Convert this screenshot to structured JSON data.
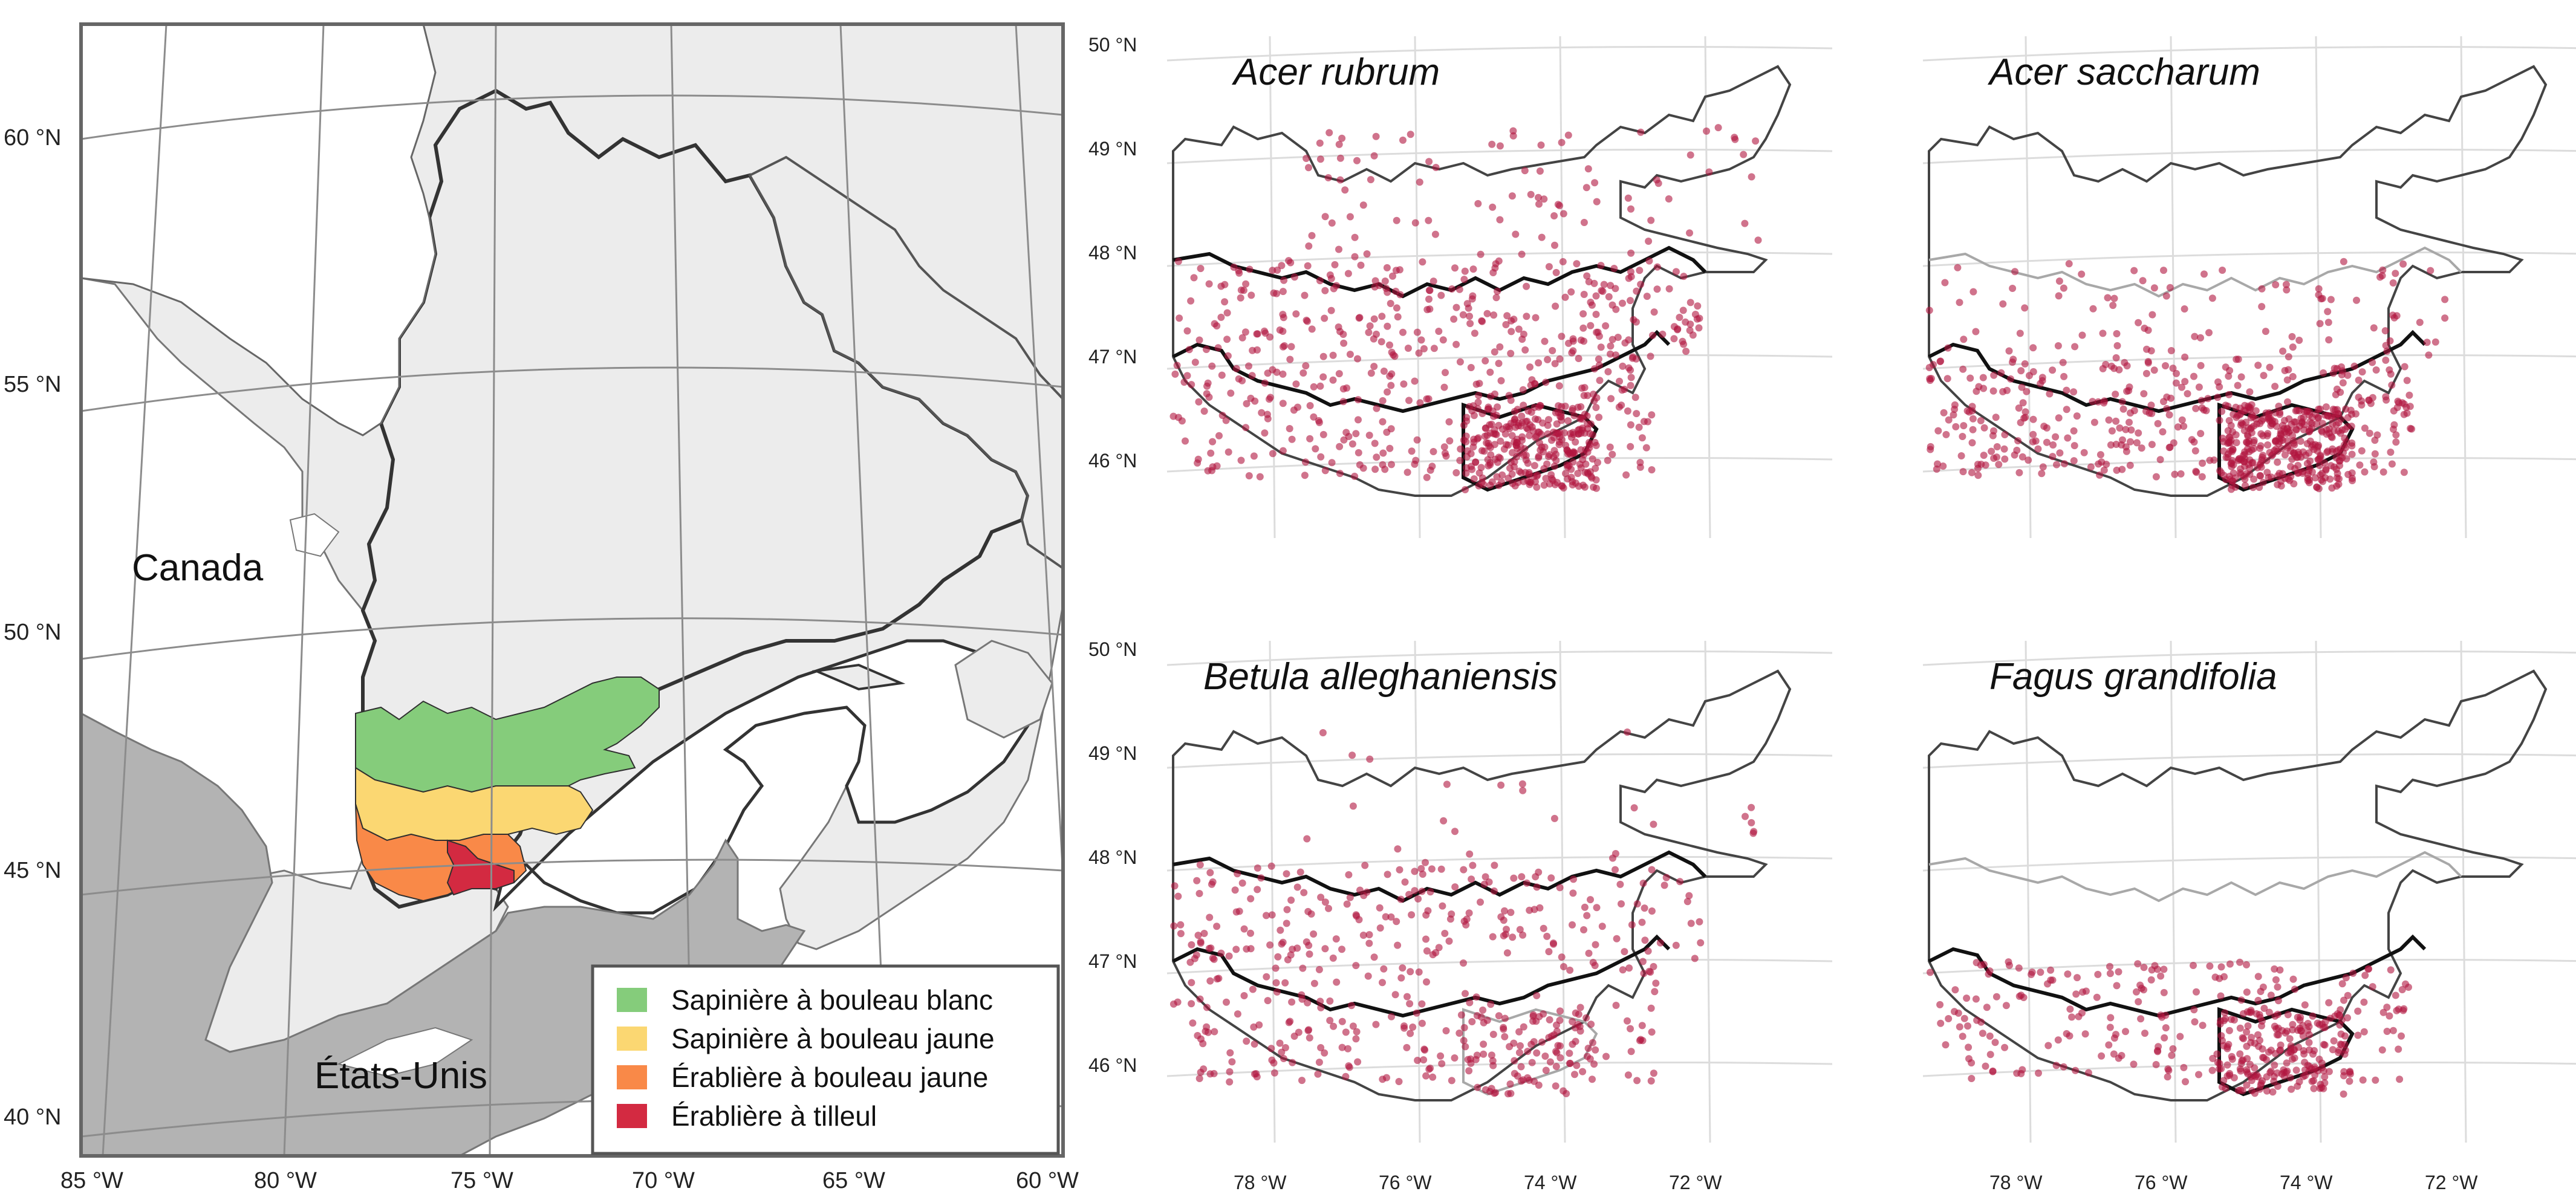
{
  "colors": {
    "land_other": "#ececec",
    "usa": "#b3b3b3",
    "water": "#ffffff",
    "domain_1": "#85cc7b",
    "domain_2": "#fbd772",
    "domain_3": "#f98948",
    "domain_4": "#d32a41",
    "points": "#b0163f",
    "outline_strong": "#111111",
    "outline_medium": "#444444",
    "outline_faint": "#a8a8a8"
  },
  "overview_map": {
    "lat_labels": [
      "60 °N",
      "55 °N",
      "50 °N",
      "45 °N",
      "40 °N"
    ],
    "lon_labels": [
      "85 °W",
      "80 °W",
      "75 °W",
      "70 °W",
      "65 °W",
      "60 °W"
    ],
    "country_labels": {
      "canada": "Canada",
      "usa": "États-Unis"
    },
    "legend": [
      {
        "label": "Sapinière à bouleau blanc",
        "color": "#85cc7b"
      },
      {
        "label": "Sapinière à bouleau jaune",
        "color": "#fbd772"
      },
      {
        "label": "Érablière à bouleau jaune",
        "color": "#f98948"
      },
      {
        "label": "Érablière à tilleul",
        "color": "#d32a41"
      }
    ]
  },
  "species_panels": {
    "lat_labels": [
      "50 °N",
      "49 °N",
      "48 °N",
      "47 °N",
      "46 °N"
    ],
    "lon_labels": [
      "78 °W",
      "76 °W",
      "74 °W",
      "72 °W"
    ],
    "panels": [
      {
        "title": "Acer rubrum",
        "highlight": [
          0,
          1,
          1,
          1
        ],
        "density": 0.95,
        "bias": [
          0.1,
          0.3,
          0.3,
          0.3
        ]
      },
      {
        "title": "Acer saccharum",
        "highlight": [
          0,
          0,
          1,
          1
        ],
        "density": 0.85,
        "bias": [
          0.0,
          0.12,
          0.48,
          0.4
        ]
      },
      {
        "title": "Betula alleghaniensis",
        "highlight": [
          0,
          1,
          1,
          0
        ],
        "density": 0.55,
        "bias": [
          0.05,
          0.4,
          0.4,
          0.15
        ]
      },
      {
        "title": "Fagus grandifolia",
        "highlight": [
          0,
          0,
          1,
          1
        ],
        "density": 0.45,
        "bias": [
          0.0,
          0.0,
          0.55,
          0.45
        ]
      }
    ]
  }
}
